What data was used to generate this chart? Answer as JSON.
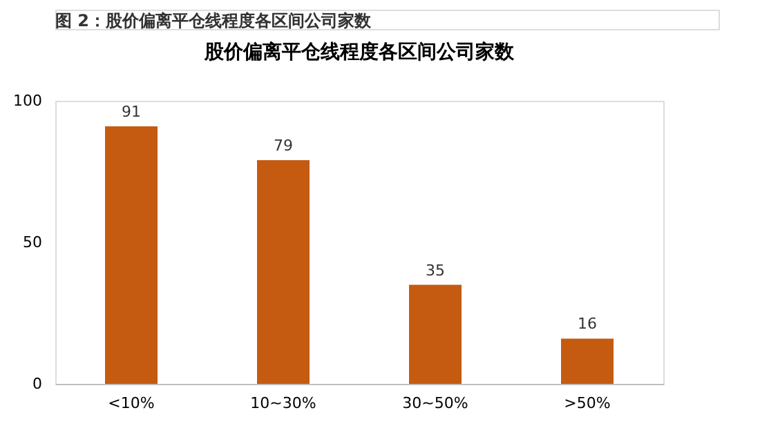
{
  "chart_data": {
    "type": "bar",
    "title": "股价偏离平仓线程度各区间公司家数",
    "annotations": [
      "图 2：股价偏离平仓线程度各区间公司家数"
    ],
    "categories": [
      "<10%",
      "10~30%",
      "30~50%",
      ">50%"
    ],
    "values": [
      91,
      79,
      35,
      16
    ],
    "color": "#c55a11",
    "ylim": [
      0,
      100
    ],
    "yticks": [
      0,
      50,
      100
    ],
    "grid": false,
    "data_labels": true
  }
}
